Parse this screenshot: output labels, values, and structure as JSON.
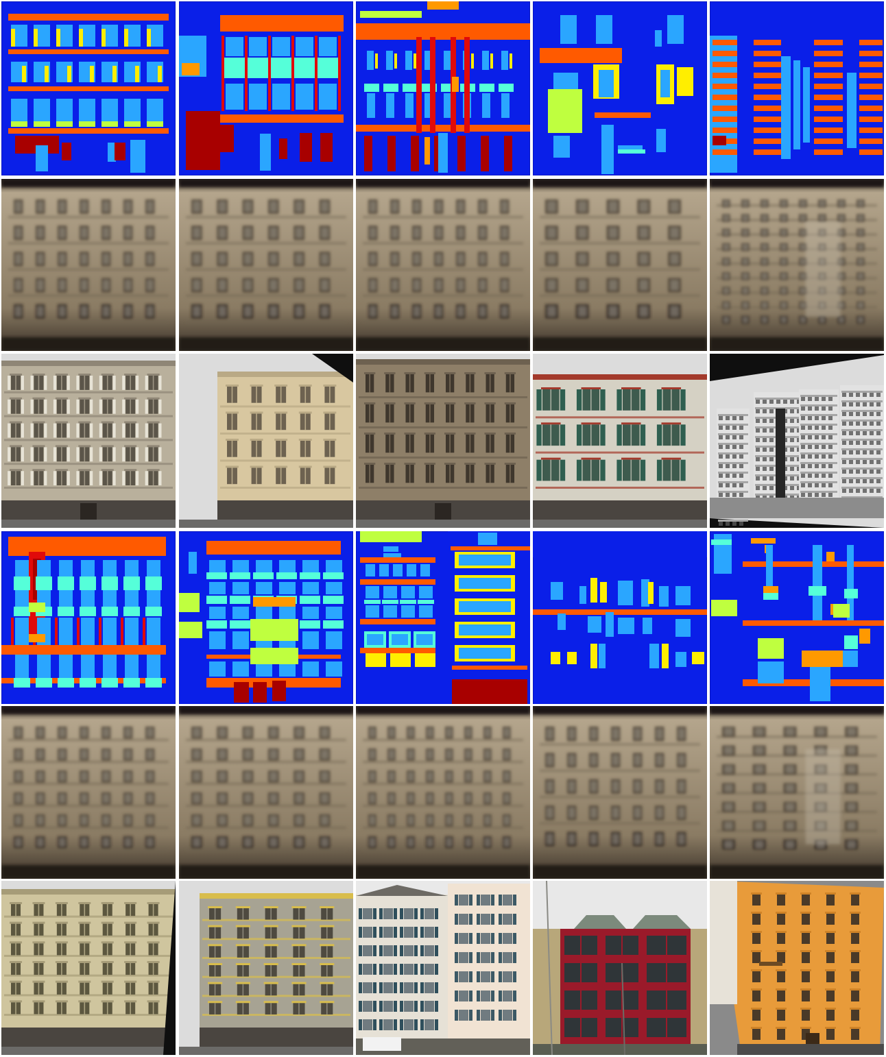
{
  "figure": {
    "columns": 5,
    "rows": [
      {
        "kind": "label-map",
        "group": 1
      },
      {
        "kind": "generated-facade",
        "group": 1
      },
      {
        "kind": "ground-truth-photo",
        "group": 1
      },
      {
        "kind": "label-map",
        "group": 2
      },
      {
        "kind": "generated-facade",
        "group": 2
      },
      {
        "kind": "ground-truth-photo",
        "group": 2
      }
    ]
  },
  "palette": {
    "background": "#0a1fe8",
    "window": "#2aa6ff",
    "sill": "#55ffd9",
    "cornice": "#ff5a00",
    "door": "#a80000",
    "pillar": "#e00a0a",
    "shop": "#bfff3f",
    "shutter": "#ffee00",
    "balcony": "#ff9900",
    "blind": "#00d0ff"
  },
  "photo_palettes": {
    "beige": [
      "#b9b09c",
      "#8f8676",
      "#5b5549"
    ],
    "cream": [
      "#d8c7a0",
      "#b9a985",
      "#6d6250"
    ],
    "stone": [
      "#8e7f68",
      "#6d6150",
      "#3f372d"
    ],
    "white_red": [
      "#d5d1c4",
      "#a33a2c",
      "#3e5b4e"
    ],
    "concrete": [
      "#e2e2e2",
      "#b9b9b9",
      "#555555"
    ],
    "ochre": [
      "#cfc59e",
      "#a69c78",
      "#5c573f"
    ],
    "grey_yellow": [
      "#a7a393",
      "#d8bd4c",
      "#4e4a40"
    ],
    "swiss": [
      "#e6e1d6",
      "#f1e3d3",
      "#2f4f5c"
    ],
    "red_bay": [
      "#9a1a2a",
      "#b8a77a",
      "#5a5e52"
    ],
    "orange": [
      "#e89b3a",
      "#cf8327",
      "#6c4a23"
    ]
  },
  "generated_palette": [
    "#b4a58c",
    "#8a7b63",
    "#4a3f33"
  ]
}
